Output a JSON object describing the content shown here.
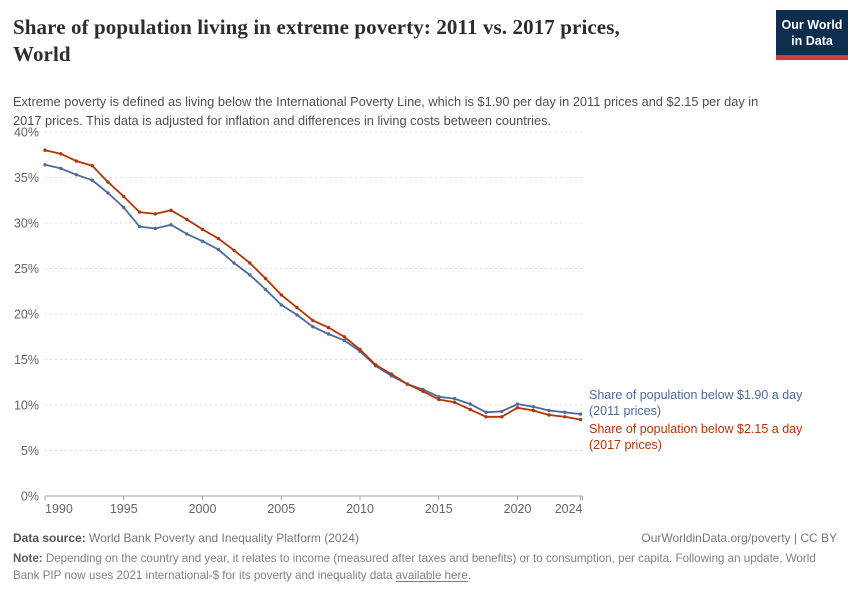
{
  "header": {
    "title_lines": [
      "Share of population living in extreme poverty: 2011 vs. 2017 prices,",
      "World"
    ],
    "logo": {
      "line1": "Our World",
      "line2": "in Data"
    }
  },
  "subtitle": "Extreme poverty is defined as living below the International Poverty Line, which is $1.90 per day in 2011 prices and $2.15 per day in 2017 prices. This data is adjusted for inflation and differences in living costs between countries.",
  "chart_data": {
    "type": "line",
    "title": "Share of population living in extreme poverty: 2011 vs. 2017 prices, World",
    "xlabel": "",
    "ylabel": "",
    "x": [
      1990,
      1991,
      1992,
      1993,
      1994,
      1995,
      1996,
      1997,
      1998,
      1999,
      2000,
      2001,
      2002,
      2003,
      2004,
      2005,
      2006,
      2007,
      2008,
      2009,
      2010,
      2011,
      2012,
      2013,
      2014,
      2015,
      2016,
      2017,
      2018,
      2019,
      2020,
      2021,
      2022,
      2023,
      2024
    ],
    "series": [
      {
        "name": "Share of population below $1.90 a day (2011 prices)",
        "label_lines": [
          "Share of population below $1.90 a day",
          "(2011 prices)"
        ],
        "color": "#4C6A9C",
        "values": [
          36.4,
          36.0,
          35.3,
          34.7,
          33.3,
          31.7,
          29.6,
          29.4,
          29.8,
          28.8,
          28.0,
          27.1,
          25.6,
          24.3,
          22.7,
          21.0,
          19.9,
          18.6,
          17.8,
          17.1,
          15.9,
          14.3,
          13.2,
          12.3,
          11.7,
          10.9,
          10.7,
          10.1,
          9.2,
          9.3,
          10.1,
          9.8,
          9.4,
          9.2,
          9.0
        ]
      },
      {
        "name": "Share of population below $2.15 a day (2017 prices)",
        "label_lines": [
          "Share of population below $2.15 a day",
          "(2017 prices)"
        ],
        "color": "#B13507",
        "values": [
          38.0,
          37.6,
          36.8,
          36.3,
          34.5,
          32.9,
          31.2,
          31.0,
          31.4,
          30.4,
          29.3,
          28.3,
          27.0,
          25.6,
          23.9,
          22.1,
          20.7,
          19.3,
          18.5,
          17.5,
          16.1,
          14.4,
          13.4,
          12.3,
          11.5,
          10.6,
          10.3,
          9.5,
          8.7,
          8.7,
          9.7,
          9.4,
          8.9,
          8.7,
          8.4
        ]
      }
    ],
    "ylim": [
      0,
      40
    ],
    "yticks": [
      0,
      5,
      10,
      15,
      20,
      25,
      30,
      35,
      40
    ],
    "ytick_suffix": "%",
    "xticks": [
      1990,
      1995,
      2000,
      2005,
      2010,
      2015,
      2020,
      2024
    ],
    "grid": "dashed",
    "legend_position": "right-of-line-end",
    "axis_color": "#a3a3a3",
    "grid_color": "#dcdcdc",
    "tick_label_color": "#666666"
  },
  "footer": {
    "datasource_label": "Data source:",
    "datasource_value": " World Bank Poverty and Inequality Platform (2024)",
    "attribution": "OurWorldinData.org/poverty | CC BY",
    "note_label": "Note:",
    "note_text": " Depending on the country and year, it relates to income (measured after taxes and benefits) or to consumption, per capita. Following an update, World Bank PIP now uses 2021 international-$ for its poverty and inequality data ",
    "note_link": "available here",
    "note_suffix": "."
  }
}
